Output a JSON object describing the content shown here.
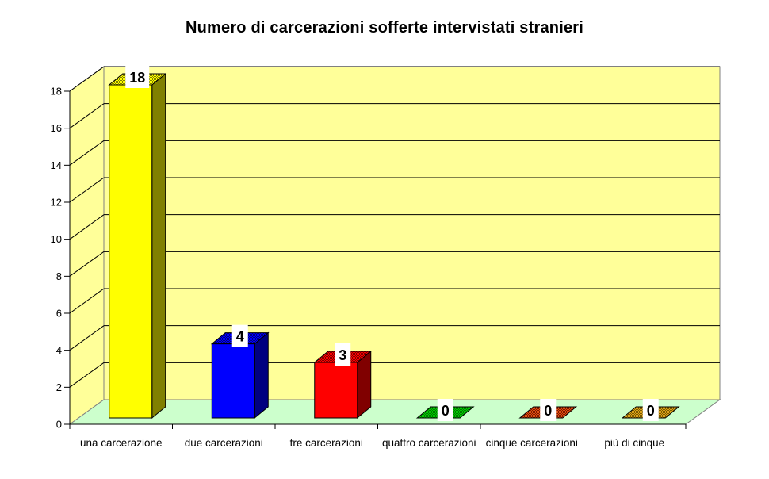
{
  "title": "Numero di carcerazioni sofferte intervistati stranieri",
  "chart_data": {
    "type": "bar",
    "style": "3d-column",
    "title": "Numero di carcerazioni sofferte intervistati stranieri",
    "categories": [
      "una carcerazione",
      "due carcerazioni",
      "tre carcerazioni",
      "quattro carcerazioni",
      "cinque carcerazioni",
      "più di cinque"
    ],
    "values": [
      18,
      4,
      3,
      0,
      0,
      0
    ],
    "data_labels": [
      "18",
      "4",
      "3",
      "0",
      "0",
      "0"
    ],
    "xlabel": "",
    "ylabel": "",
    "ylim": [
      0,
      18
    ],
    "yticks": [
      0,
      2,
      4,
      6,
      8,
      10,
      12,
      14,
      16,
      18
    ],
    "grid": true,
    "legend": "none",
    "colors": {
      "background": "#FFFFFF",
      "wall": "#FFFF99",
      "floor": "#CCFFCC",
      "grid": "#000000",
      "edge": "#808080",
      "axis": "#000000",
      "label_box": "#FFFFFF",
      "label_text": "#000000",
      "bars": [
        {
          "front": "#FFFF00",
          "side": "#808000"
        },
        {
          "front": "#0000FE",
          "side": "#000080"
        },
        {
          "front": "#FE0000",
          "side": "#800000"
        },
        {
          "front": "#00CC00",
          "side": "#007700"
        },
        {
          "front": "#E05010",
          "side": "#801800"
        },
        {
          "front": "#DCA018",
          "side": "#7A5A00"
        }
      ]
    }
  }
}
